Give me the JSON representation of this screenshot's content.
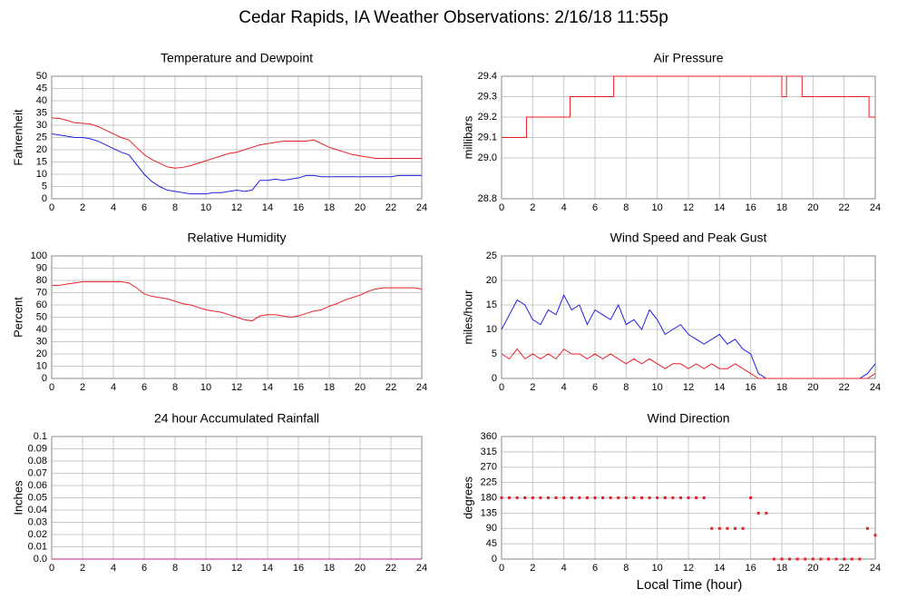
{
  "title": "Cedar Rapids, IA Weather Observations: 2/16/18 11:55p",
  "xlabel": "Local Time (hour)",
  "chart_data": [
    {
      "type": "line",
      "title": "Temperature and Dewpoint",
      "ylabel": "Fahrenheit",
      "grid": true,
      "x": [
        0,
        0.5,
        1,
        1.5,
        2,
        2.5,
        3,
        3.5,
        4,
        4.5,
        5,
        5.5,
        6,
        6.5,
        7,
        7.5,
        8,
        8.5,
        9,
        9.5,
        10,
        10.5,
        11,
        11.5,
        12,
        12.5,
        13,
        13.5,
        14,
        14.5,
        15,
        15.5,
        16,
        16.5,
        17,
        17.5,
        18,
        18.5,
        19,
        19.5,
        20,
        20.5,
        21,
        21.5,
        22,
        22.5,
        23,
        23.5,
        24
      ],
      "series": [
        {
          "color": "#e8202a",
          "values": [
            33,
            32.8,
            32,
            31,
            30.8,
            30.5,
            29.5,
            28,
            26.5,
            25,
            24,
            21,
            18,
            16,
            14.5,
            13,
            12.5,
            12.8,
            13.5,
            14.5,
            15.5,
            16.5,
            17.5,
            18.5,
            19,
            20,
            21,
            22,
            22.5,
            23,
            23.5,
            23.5,
            23.5,
            23.5,
            24,
            22.5,
            21,
            20,
            19,
            18,
            17.5,
            17,
            16.5,
            16.5,
            16.5,
            16.5,
            16.5,
            16.5,
            16.5
          ]
        },
        {
          "color": "#2020e0",
          "values": [
            26.5,
            26,
            25.5,
            25,
            25,
            24.5,
            23.5,
            22,
            20.5,
            19,
            18,
            14,
            10,
            7,
            5,
            3.5,
            3,
            2.5,
            2,
            2,
            2,
            2.5,
            2.5,
            3,
            3.5,
            3,
            3.5,
            7.5,
            7.5,
            8,
            7.5,
            8,
            8.5,
            9.5,
            9.5,
            9,
            9,
            9,
            9,
            9,
            9,
            9,
            9,
            9,
            9,
            9.5,
            9.5,
            9.5,
            9.5
          ]
        }
      ],
      "xlim": [
        0,
        24
      ],
      "xticks": [
        0,
        2,
        4,
        6,
        8,
        10,
        12,
        14,
        16,
        18,
        20,
        22,
        24
      ],
      "ylim": [
        0,
        50
      ],
      "yticks": [
        0,
        5,
        10,
        15,
        20,
        25,
        30,
        35,
        40,
        45,
        50
      ]
    },
    {
      "type": "line",
      "title": "Air Pressure",
      "ylabel": "millibars",
      "grid": true,
      "x": [
        0,
        1.6,
        1.6,
        4.4,
        4.4,
        7.2,
        7.2,
        18,
        18,
        18.3,
        18.3,
        19.3,
        19.3,
        19.6,
        19.6,
        23.6,
        23.6,
        24
      ],
      "series": [
        {
          "color": "#e8202a",
          "values": [
            29.1,
            29.1,
            29.2,
            29.2,
            29.3,
            29.3,
            29.4,
            29.4,
            29.3,
            29.3,
            29.4,
            29.4,
            29.3,
            29.3,
            29.3,
            29.3,
            29.2,
            29.2
          ]
        }
      ],
      "xlim": [
        0,
        24
      ],
      "xticks": [
        0,
        2,
        4,
        6,
        8,
        10,
        12,
        14,
        16,
        18,
        20,
        22,
        24
      ],
      "ylim": [
        28.8,
        29.4
      ],
      "yticks": [
        28.8,
        {
          "value": 29,
          "label": "29.0"
        },
        29.1,
        29.2,
        29.3,
        29.4
      ]
    },
    {
      "type": "line",
      "title": "Relative Humidity",
      "ylabel": "Percent",
      "grid": true,
      "x": [
        0,
        0.5,
        1,
        1.5,
        2,
        2.5,
        3,
        3.5,
        4,
        4.5,
        5,
        5.5,
        6,
        6.5,
        7,
        7.5,
        8,
        8.5,
        9,
        9.5,
        10,
        10.5,
        11,
        11.5,
        12,
        12.5,
        13,
        13.5,
        14,
        14.5,
        15,
        15.5,
        16,
        16.5,
        17,
        17.5,
        18,
        18.5,
        19,
        19.5,
        20,
        20.5,
        21,
        21.5,
        22,
        22.5,
        23,
        23.5,
        24
      ],
      "series": [
        {
          "color": "#e8202a",
          "values": [
            76,
            76,
            77,
            78,
            79,
            79,
            79,
            79,
            79,
            79,
            78,
            74,
            69,
            67,
            66,
            65,
            63,
            61,
            60,
            58,
            56,
            55,
            54,
            52,
            50,
            48,
            47,
            51,
            52,
            52,
            51,
            50,
            51,
            53,
            55,
            56,
            59,
            61,
            64,
            66,
            68,
            71,
            73,
            74,
            74,
            74,
            74,
            74,
            73
          ]
        }
      ],
      "xlim": [
        0,
        24
      ],
      "xticks": [
        0,
        2,
        4,
        6,
        8,
        10,
        12,
        14,
        16,
        18,
        20,
        22,
        24
      ],
      "ylim": [
        0,
        100
      ],
      "yticks": [
        0,
        10,
        20,
        30,
        40,
        50,
        60,
        70,
        80,
        90,
        100
      ]
    },
    {
      "type": "line",
      "title": "Wind Speed and Peak Gust",
      "ylabel": "miles/hour",
      "grid": true,
      "x": [
        0,
        0.5,
        1,
        1.5,
        2,
        2.5,
        3,
        3.5,
        4,
        4.5,
        5,
        5.5,
        6,
        6.5,
        7,
        7.5,
        8,
        8.5,
        9,
        9.5,
        10,
        10.5,
        11,
        11.5,
        12,
        12.5,
        13,
        13.5,
        14,
        14.5,
        15,
        15.5,
        16,
        16.5,
        17,
        17.5,
        18,
        18.5,
        19,
        19.5,
        20,
        20.5,
        21,
        21.5,
        22,
        22.5,
        23,
        23.5,
        24
      ],
      "series": [
        {
          "color": "#2020e0",
          "values": [
            10,
            13,
            16,
            15,
            12,
            11,
            14,
            13,
            17,
            14,
            15,
            11,
            14,
            13,
            12,
            15,
            11,
            12,
            10,
            14,
            12,
            9,
            10,
            11,
            9,
            8,
            7,
            8,
            9,
            7,
            8,
            6,
            5,
            1,
            0,
            0,
            0,
            0,
            0,
            0,
            0,
            0,
            0,
            0,
            0,
            0,
            0,
            1,
            3
          ]
        },
        {
          "color": "#e8202a",
          "values": [
            5,
            4,
            6,
            4,
            5,
            4,
            5,
            4,
            6,
            5,
            5,
            4,
            5,
            4,
            5,
            4,
            3,
            4,
            3,
            4,
            3,
            2,
            3,
            3,
            2,
            3,
            2,
            3,
            2,
            2,
            3,
            2,
            1,
            0,
            0,
            0,
            0,
            0,
            0,
            0,
            0,
            0,
            0,
            0,
            0,
            0,
            0,
            0,
            1
          ]
        }
      ],
      "xlim": [
        0,
        24
      ],
      "xticks": [
        0,
        2,
        4,
        6,
        8,
        10,
        12,
        14,
        16,
        18,
        20,
        22,
        24
      ],
      "ylim": [
        0,
        25
      ],
      "yticks": [
        0,
        5,
        10,
        15,
        20,
        25
      ]
    },
    {
      "type": "line",
      "title": "24 hour Accumulated Rainfall",
      "ylabel": "Inches",
      "grid": true,
      "x": [
        0,
        24
      ],
      "series": [
        {
          "color": "#c0208a",
          "values": [
            0,
            0
          ]
        }
      ],
      "xlim": [
        0,
        24
      ],
      "xticks": [
        0,
        2,
        4,
        6,
        8,
        10,
        12,
        14,
        16,
        18,
        20,
        22,
        24
      ],
      "ylim": [
        0,
        0.1
      ],
      "yticks": [
        {
          "value": 0,
          "label": "0.0"
        },
        0.01,
        0.02,
        0.03,
        0.04,
        0.05,
        0.06,
        0.07,
        0.08,
        0.09,
        0.1
      ]
    },
    {
      "type": "scatter",
      "title": "Wind Direction",
      "ylabel": "degrees",
      "grid": true,
      "x": [
        0,
        0.5,
        1,
        1.5,
        2,
        2.5,
        3,
        3.5,
        4,
        4.5,
        5,
        5.5,
        6,
        6.5,
        7,
        7.5,
        8,
        8.5,
        9,
        9.5,
        10,
        10.5,
        11,
        11.5,
        12,
        12.5,
        13,
        13.5,
        14,
        14.5,
        15,
        15.5,
        16,
        16.5,
        17,
        17.5,
        18,
        18.5,
        19,
        19.5,
        20,
        20.5,
        21,
        21.5,
        22,
        22.5,
        23,
        23.5,
        24
      ],
      "series": [
        {
          "color": "#e8202a",
          "values": [
            180,
            180,
            180,
            180,
            180,
            180,
            180,
            180,
            180,
            180,
            180,
            180,
            180,
            180,
            180,
            180,
            180,
            180,
            180,
            180,
            180,
            180,
            180,
            180,
            180,
            180,
            180,
            90,
            90,
            90,
            90,
            90,
            180,
            135,
            135,
            0,
            0,
            0,
            0,
            0,
            0,
            0,
            0,
            0,
            0,
            0,
            0,
            90,
            70
          ]
        }
      ],
      "xlim": [
        0,
        24
      ],
      "xticks": [
        0,
        2,
        4,
        6,
        8,
        10,
        12,
        14,
        16,
        18,
        20,
        22,
        24
      ],
      "ylim": [
        0,
        360
      ],
      "yticks": [
        0,
        45,
        90,
        135,
        180,
        225,
        270,
        315,
        360
      ]
    }
  ]
}
